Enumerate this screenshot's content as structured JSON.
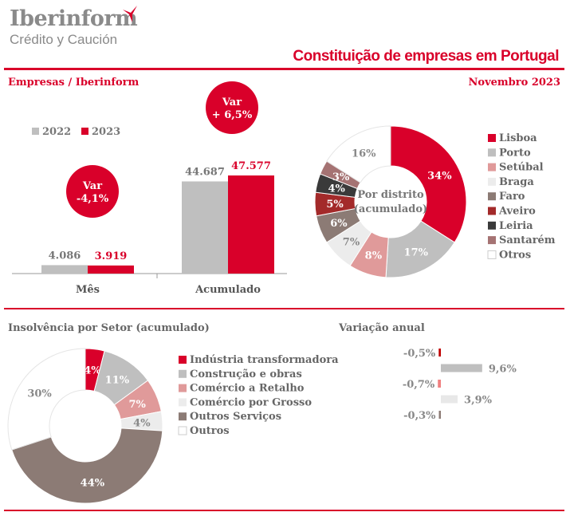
{
  "header": {
    "logo_name": "Iberinform",
    "logo_sub": "Crédito y Caución",
    "title": "Constituição de empresas em Portugal",
    "left_sub": "Empresas / Iberinform",
    "date": "Novembro 2023"
  },
  "colors": {
    "accent": "#d9002a",
    "gray": "#bfbfbf"
  },
  "chart_data": [
    {
      "type": "bar",
      "title": "Empresas / Iberinform",
      "categories": [
        "Mês",
        "Acumulado"
      ],
      "series": [
        {
          "name": "2022",
          "values": [
            4086,
            44687
          ],
          "labels": [
            "4.086",
            "44.687"
          ],
          "color": "#bfbfbf"
        },
        {
          "name": "2023",
          "values": [
            3919,
            47577
          ],
          "labels": [
            "3.919",
            "47.577"
          ],
          "color": "#d9002a"
        }
      ],
      "annotations": [
        {
          "line1": "Var",
          "line2": "-4,1%"
        },
        {
          "line1": "Var",
          "line2": "+ 6,5%"
        }
      ]
    },
    {
      "type": "pie",
      "title": "Por distrito (acumulado)",
      "center_line1": "Por distrito",
      "center_line2": "(acumulado)",
      "labels": [
        "Lisboa",
        "Porto",
        "Setúbal",
        "Braga",
        "Faro",
        "Aveiro",
        "Leiria",
        "Santarém",
        "Otros"
      ],
      "values": [
        34,
        17,
        8,
        7,
        6,
        5,
        4,
        3,
        16
      ],
      "colors": [
        "#d9002a",
        "#bfbfbf",
        "#e09a9a",
        "#ececec",
        "#8c7b75",
        "#a32a2a",
        "#3a3a3a",
        "#a57373",
        "#ffffff"
      ],
      "label_colors": [
        "#fff",
        "#fff",
        "#fff",
        "#888",
        "#fff",
        "#fff",
        "#fff",
        "#fff",
        "#888"
      ]
    },
    {
      "type": "pie",
      "title": "Insolvência por Setor (acumulado)",
      "labels": [
        "Indústria transformadora",
        "Construção e obras",
        "Comércio a Retalho",
        "Comércio por Grosso",
        "Outros Serviços",
        "Outros"
      ],
      "values": [
        4,
        11,
        7,
        4,
        44,
        30
      ],
      "colors": [
        "#d9002a",
        "#bfbfbf",
        "#e09a9a",
        "#ececec",
        "#8c7b75",
        "#ffffff"
      ],
      "label_colors": [
        "#fff",
        "#fff",
        "#fff",
        "#888",
        "#fff",
        "#888"
      ]
    },
    {
      "type": "bar",
      "title": "Variação anual",
      "orientation": "horizontal",
      "values": [
        -0.5,
        9.6,
        -0.7,
        3.9,
        -0.3
      ],
      "labels": [
        "-0,5%",
        "9,6%",
        "-0,7%",
        "3,9%",
        "-0,3%"
      ],
      "colors": [
        "#c00000",
        "#bfbfbf",
        "#f08080",
        "#e8e8e8",
        "#8c7b75"
      ]
    }
  ]
}
